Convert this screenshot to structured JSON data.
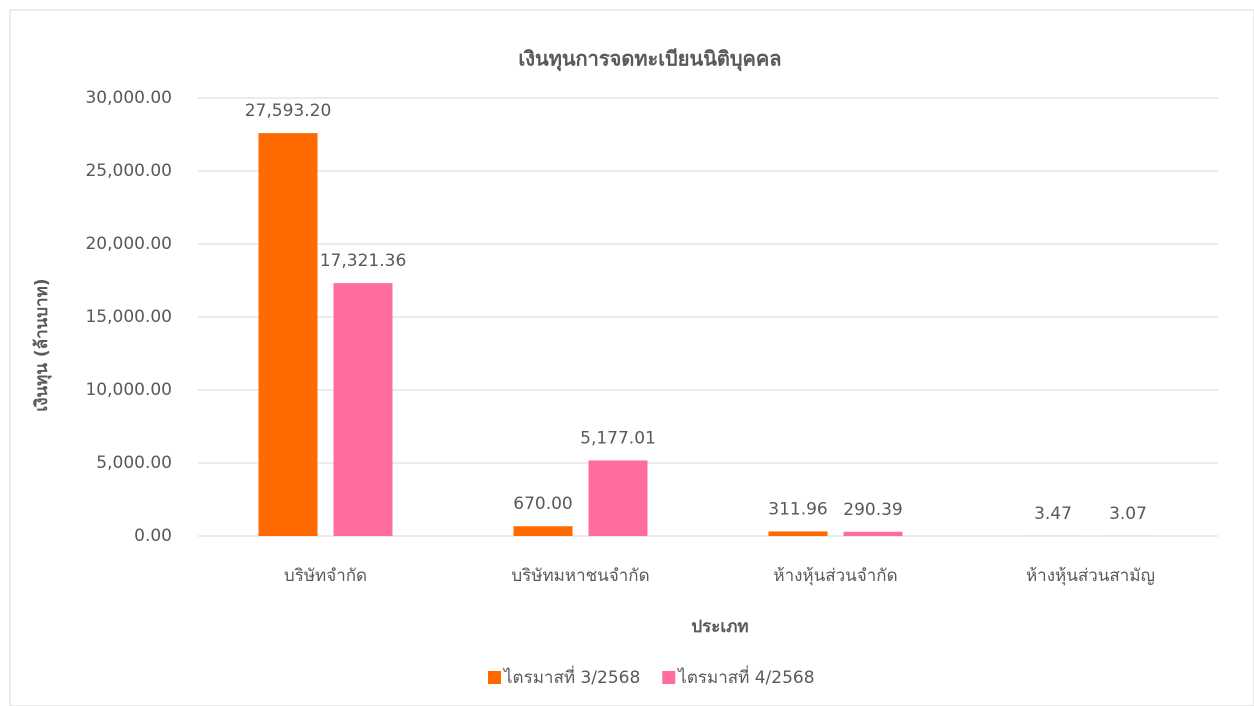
{
  "chart_data": {
    "type": "bar",
    "title": "เงินทุนการจดทะเบียนนิติบุคคล",
    "x_label": "ประเภท",
    "y_label": "เงินทุน (ล้านบาท)",
    "categories": [
      "บริษัทจำกัด",
      "บริษัทมหาชนจำกัด",
      "ห้างหุ้นส่วนจำกัด",
      "ห้างหุ้นส่วนสามัญ"
    ],
    "series": [
      {
        "name": "ไตรมาสที่ 3/2568",
        "color": "#ff6a00",
        "values": [
          27593.2,
          670.0,
          311.96,
          3.47
        ],
        "value_labels": [
          "27,593.20",
          "670.00",
          "311.96",
          "3.47"
        ]
      },
      {
        "name": "ไตรมาสที่ 4/2568",
        "color": "#ff6c9d",
        "values": [
          17321.36,
          5177.01,
          290.39,
          3.07
        ],
        "value_labels": [
          "17,321.36",
          "5,177.01",
          "290.39",
          "3.07"
        ]
      }
    ],
    "ylim": [
      0,
      30000
    ],
    "yticks": [
      {
        "value": 0,
        "label": "0.00"
      },
      {
        "value": 5000,
        "label": "5,000.00"
      },
      {
        "value": 10000,
        "label": "10,000.00"
      },
      {
        "value": 15000,
        "label": "15,000.00"
      },
      {
        "value": 20000,
        "label": "20,000.00"
      },
      {
        "value": 25000,
        "label": "25,000.00"
      },
      {
        "value": 30000,
        "label": "30,000.00"
      }
    ],
    "grid": true,
    "legend": "bottom"
  }
}
